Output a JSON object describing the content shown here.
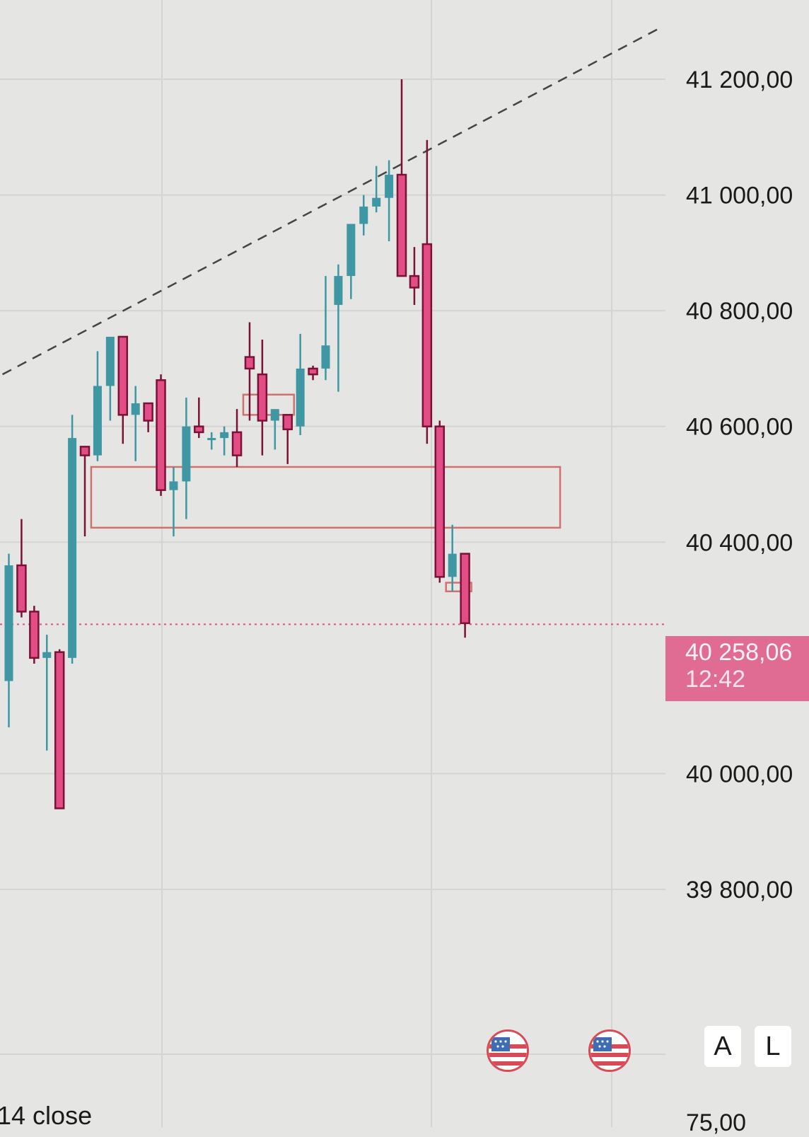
{
  "chart_data": {
    "type": "candlestick",
    "price_scale": {
      "ticks": [
        "41 200,00",
        "41 000,00",
        "40 800,00",
        "40 600,00",
        "40 400,00",
        "40 000,00",
        "39 800,00"
      ],
      "tick_values": [
        41200,
        41000,
        40800,
        40600,
        40400,
        40000,
        39800
      ],
      "range": [
        39600,
        41260
      ]
    },
    "current_price": {
      "value": 40258.06,
      "label": "40 258,06",
      "countdown": "12:42",
      "color": "#e06b93"
    },
    "colors": {
      "up": "#3f97a3",
      "down": "#e24d86",
      "down_outline": "#7a1237",
      "zone": "#d0716e",
      "trendline": "#444444"
    },
    "candles": [
      {
        "o": 40160,
        "h": 40380,
        "l": 40080,
        "c": 40360
      },
      {
        "o": 40360,
        "h": 40440,
        "l": 40270,
        "c": 40280
      },
      {
        "o": 40280,
        "h": 40290,
        "l": 40190,
        "c": 40200
      },
      {
        "o": 40200,
        "h": 40240,
        "l": 40040,
        "c": 40210
      },
      {
        "o": 40210,
        "h": 40215,
        "l": 39940,
        "c": 39940
      },
      {
        "o": 40200,
        "h": 40620,
        "l": 40190,
        "c": 40580
      },
      {
        "o": 40565,
        "h": 40560,
        "l": 40410,
        "c": 40550
      },
      {
        "o": 40550,
        "h": 40730,
        "l": 40540,
        "c": 40670
      },
      {
        "o": 40670,
        "h": 40755,
        "l": 40610,
        "c": 40755
      },
      {
        "o": 40755,
        "h": 40755,
        "l": 40570,
        "c": 40620
      },
      {
        "o": 40620,
        "h": 40670,
        "l": 40540,
        "c": 40640
      },
      {
        "o": 40640,
        "h": 40640,
        "l": 40590,
        "c": 40610
      },
      {
        "o": 40680,
        "h": 40690,
        "l": 40480,
        "c": 40490
      },
      {
        "o": 40490,
        "h": 40530,
        "l": 40410,
        "c": 40505
      },
      {
        "o": 40505,
        "h": 40650,
        "l": 40440,
        "c": 40600
      },
      {
        "o": 40600,
        "h": 40650,
        "l": 40580,
        "c": 40590
      },
      {
        "o": 40580,
        "h": 40590,
        "l": 40560,
        "c": 40580
      },
      {
        "o": 40580,
        "h": 40600,
        "l": 40550,
        "c": 40590
      },
      {
        "o": 40590,
        "h": 40630,
        "l": 40530,
        "c": 40550
      },
      {
        "o": 40720,
        "h": 40780,
        "l": 40610,
        "c": 40700
      },
      {
        "o": 40690,
        "h": 40750,
        "l": 40550,
        "c": 40610
      },
      {
        "o": 40610,
        "h": 40630,
        "l": 40560,
        "c": 40630
      },
      {
        "o": 40620,
        "h": 40620,
        "l": 40535,
        "c": 40595
      },
      {
        "o": 40600,
        "h": 40760,
        "l": 40585,
        "c": 40700
      },
      {
        "o": 40700,
        "h": 40705,
        "l": 40680,
        "c": 40690
      },
      {
        "o": 40700,
        "h": 40860,
        "l": 40680,
        "c": 40740
      },
      {
        "o": 40810,
        "h": 40880,
        "l": 40660,
        "c": 40860
      },
      {
        "o": 40860,
        "h": 40950,
        "l": 40820,
        "c": 40950
      },
      {
        "o": 40950,
        "h": 41000,
        "l": 40930,
        "c": 40980
      },
      {
        "o": 40980,
        "h": 41050,
        "l": 40970,
        "c": 40995
      },
      {
        "o": 40995,
        "h": 41060,
        "l": 40920,
        "c": 41035
      },
      {
        "o": 41035,
        "h": 41200,
        "l": 40860,
        "c": 40860
      },
      {
        "o": 40860,
        "h": 40910,
        "l": 40810,
        "c": 40840
      },
      {
        "o": 40915,
        "h": 41095,
        "l": 40570,
        "c": 40600
      },
      {
        "o": 40600,
        "h": 40610,
        "l": 40330,
        "c": 40340
      },
      {
        "o": 40340,
        "h": 40430,
        "l": 40315,
        "c": 40380
      },
      {
        "o": 40380,
        "h": 40380,
        "l": 40235,
        "c": 40260
      }
    ],
    "zones": [
      {
        "name": "main-zone",
        "top": 40530,
        "bottom": 40425,
        "from": 7,
        "to": 43
      },
      {
        "name": "small-zone-1",
        "top": 40655,
        "bottom": 40620,
        "from": 19,
        "to": 22
      },
      {
        "name": "small-zone-2",
        "top": 40330,
        "bottom": 40315,
        "from": 35,
        "to": 36
      }
    ],
    "trendline": {
      "from": [
        -0.5,
        40690
      ],
      "to": [
        51.5,
        41290
      ],
      "style": "dashed"
    }
  },
  "ui": {
    "scale_buttons": {
      "auto": "A",
      "log": "L"
    },
    "bottom_left_label": "14 close",
    "bottom_right_value": "75,00",
    "event_icons": [
      "us-flag-icon",
      "us-flag-icon"
    ]
  }
}
